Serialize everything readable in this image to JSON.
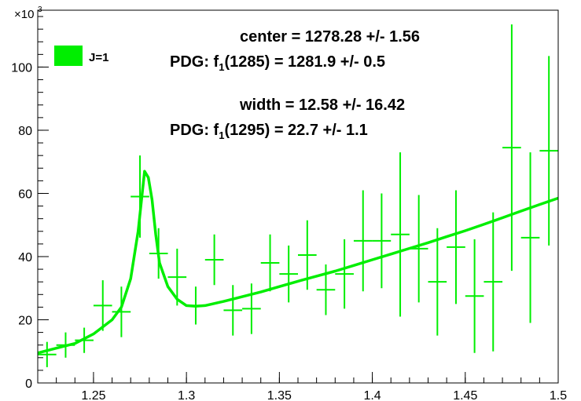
{
  "chart_data": {
    "type": "scatter",
    "xlim": [
      1.22,
      1.5
    ],
    "ylim": [
      0,
      118
    ],
    "x_ticks": [
      1.25,
      1.3,
      1.35,
      1.4,
      1.45,
      1.5
    ],
    "x_tick_labels": [
      "1.25",
      "1.3",
      "1.35",
      "1.4",
      "1.45",
      "1.5"
    ],
    "y_ticks": [
      0,
      20,
      40,
      60,
      80,
      100
    ],
    "y_tick_labels": [
      "0",
      "20",
      "40",
      "60",
      "80",
      "100"
    ],
    "y_multiplier": {
      "base": "×10",
      "exponent": "3"
    },
    "legend": {
      "label": "J=1",
      "color": "#00ee00",
      "placement": "top-left"
    },
    "annotations": {
      "center": "center = 1278.28 +/- 1.56",
      "pdg1_prefix": "PDG: f",
      "pdg1_sub": "1",
      "pdg1_rest": "(1285) = 1281.9   +/-  0.5",
      "width": "width  =  12.58 +/- 16.42",
      "pdg2_prefix": "PDG: f",
      "pdg2_sub": "1",
      "pdg2_rest": "(1295) =  22.7   +/-  1.1"
    },
    "series": [
      {
        "type": "errorbars",
        "color": "#00ee00",
        "x_half_width": 0.005,
        "points": [
          {
            "x": 1.225,
            "y": 9,
            "err": 4
          },
          {
            "x": 1.235,
            "y": 12,
            "err": 4
          },
          {
            "x": 1.245,
            "y": 13.5,
            "err": 4
          },
          {
            "x": 1.255,
            "y": 24.5,
            "err": 8
          },
          {
            "x": 1.265,
            "y": 22.5,
            "err": 8
          },
          {
            "x": 1.275,
            "y": 59,
            "err": 13
          },
          {
            "x": 1.285,
            "y": 41,
            "err": 8
          },
          {
            "x": 1.295,
            "y": 33.5,
            "err": 9
          },
          {
            "x": 1.305,
            "y": 24.5,
            "err": 6
          },
          {
            "x": 1.315,
            "y": 39,
            "err": 8
          },
          {
            "x": 1.325,
            "y": 23,
            "err": 8
          },
          {
            "x": 1.335,
            "y": 23.5,
            "err": 8
          },
          {
            "x": 1.345,
            "y": 38,
            "err": 9
          },
          {
            "x": 1.355,
            "y": 34.5,
            "err": 9
          },
          {
            "x": 1.365,
            "y": 40.5,
            "err": 11
          },
          {
            "x": 1.375,
            "y": 29.5,
            "err": 8
          },
          {
            "x": 1.385,
            "y": 34.5,
            "err": 11
          },
          {
            "x": 1.395,
            "y": 45,
            "err": 16
          },
          {
            "x": 1.405,
            "y": 45,
            "err": 15
          },
          {
            "x": 1.415,
            "y": 47,
            "err": 26
          },
          {
            "x": 1.425,
            "y": 42.5,
            "err": 17
          },
          {
            "x": 1.435,
            "y": 32,
            "err": 17
          },
          {
            "x": 1.445,
            "y": 43,
            "err": 18
          },
          {
            "x": 1.455,
            "y": 27.5,
            "err": 18
          },
          {
            "x": 1.465,
            "y": 32,
            "err": 22
          },
          {
            "x": 1.475,
            "y": 74.5,
            "err": 39
          },
          {
            "x": 1.485,
            "y": 46,
            "err": 27
          },
          {
            "x": 1.495,
            "y": 73.5,
            "err": 30
          }
        ]
      },
      {
        "type": "line",
        "color": "#00ee00",
        "points": [
          [
            1.22,
            9.5
          ],
          [
            1.23,
            11
          ],
          [
            1.24,
            12.5
          ],
          [
            1.25,
            15.5
          ],
          [
            1.26,
            20
          ],
          [
            1.265,
            24
          ],
          [
            1.27,
            33
          ],
          [
            1.274,
            48
          ],
          [
            1.2775,
            67
          ],
          [
            1.2795,
            65
          ],
          [
            1.2815,
            58
          ],
          [
            1.2835,
            47
          ],
          [
            1.2855,
            38
          ],
          [
            1.29,
            30.5
          ],
          [
            1.295,
            26.5
          ],
          [
            1.3,
            24.5
          ],
          [
            1.305,
            24.3
          ],
          [
            1.31,
            24.5
          ],
          [
            1.32,
            25.8
          ],
          [
            1.33,
            27.3
          ],
          [
            1.34,
            28.8
          ],
          [
            1.35,
            30.5
          ],
          [
            1.36,
            32.2
          ],
          [
            1.37,
            33.8
          ],
          [
            1.38,
            35.4
          ],
          [
            1.39,
            37.2
          ],
          [
            1.4,
            39
          ],
          [
            1.41,
            40.8
          ],
          [
            1.42,
            42.6
          ],
          [
            1.43,
            44.4
          ],
          [
            1.44,
            46.3
          ],
          [
            1.45,
            48.2
          ],
          [
            1.46,
            50.2
          ],
          [
            1.47,
            52.3
          ],
          [
            1.48,
            54.4
          ],
          [
            1.49,
            56.5
          ],
          [
            1.5,
            58.5
          ]
        ]
      }
    ]
  }
}
